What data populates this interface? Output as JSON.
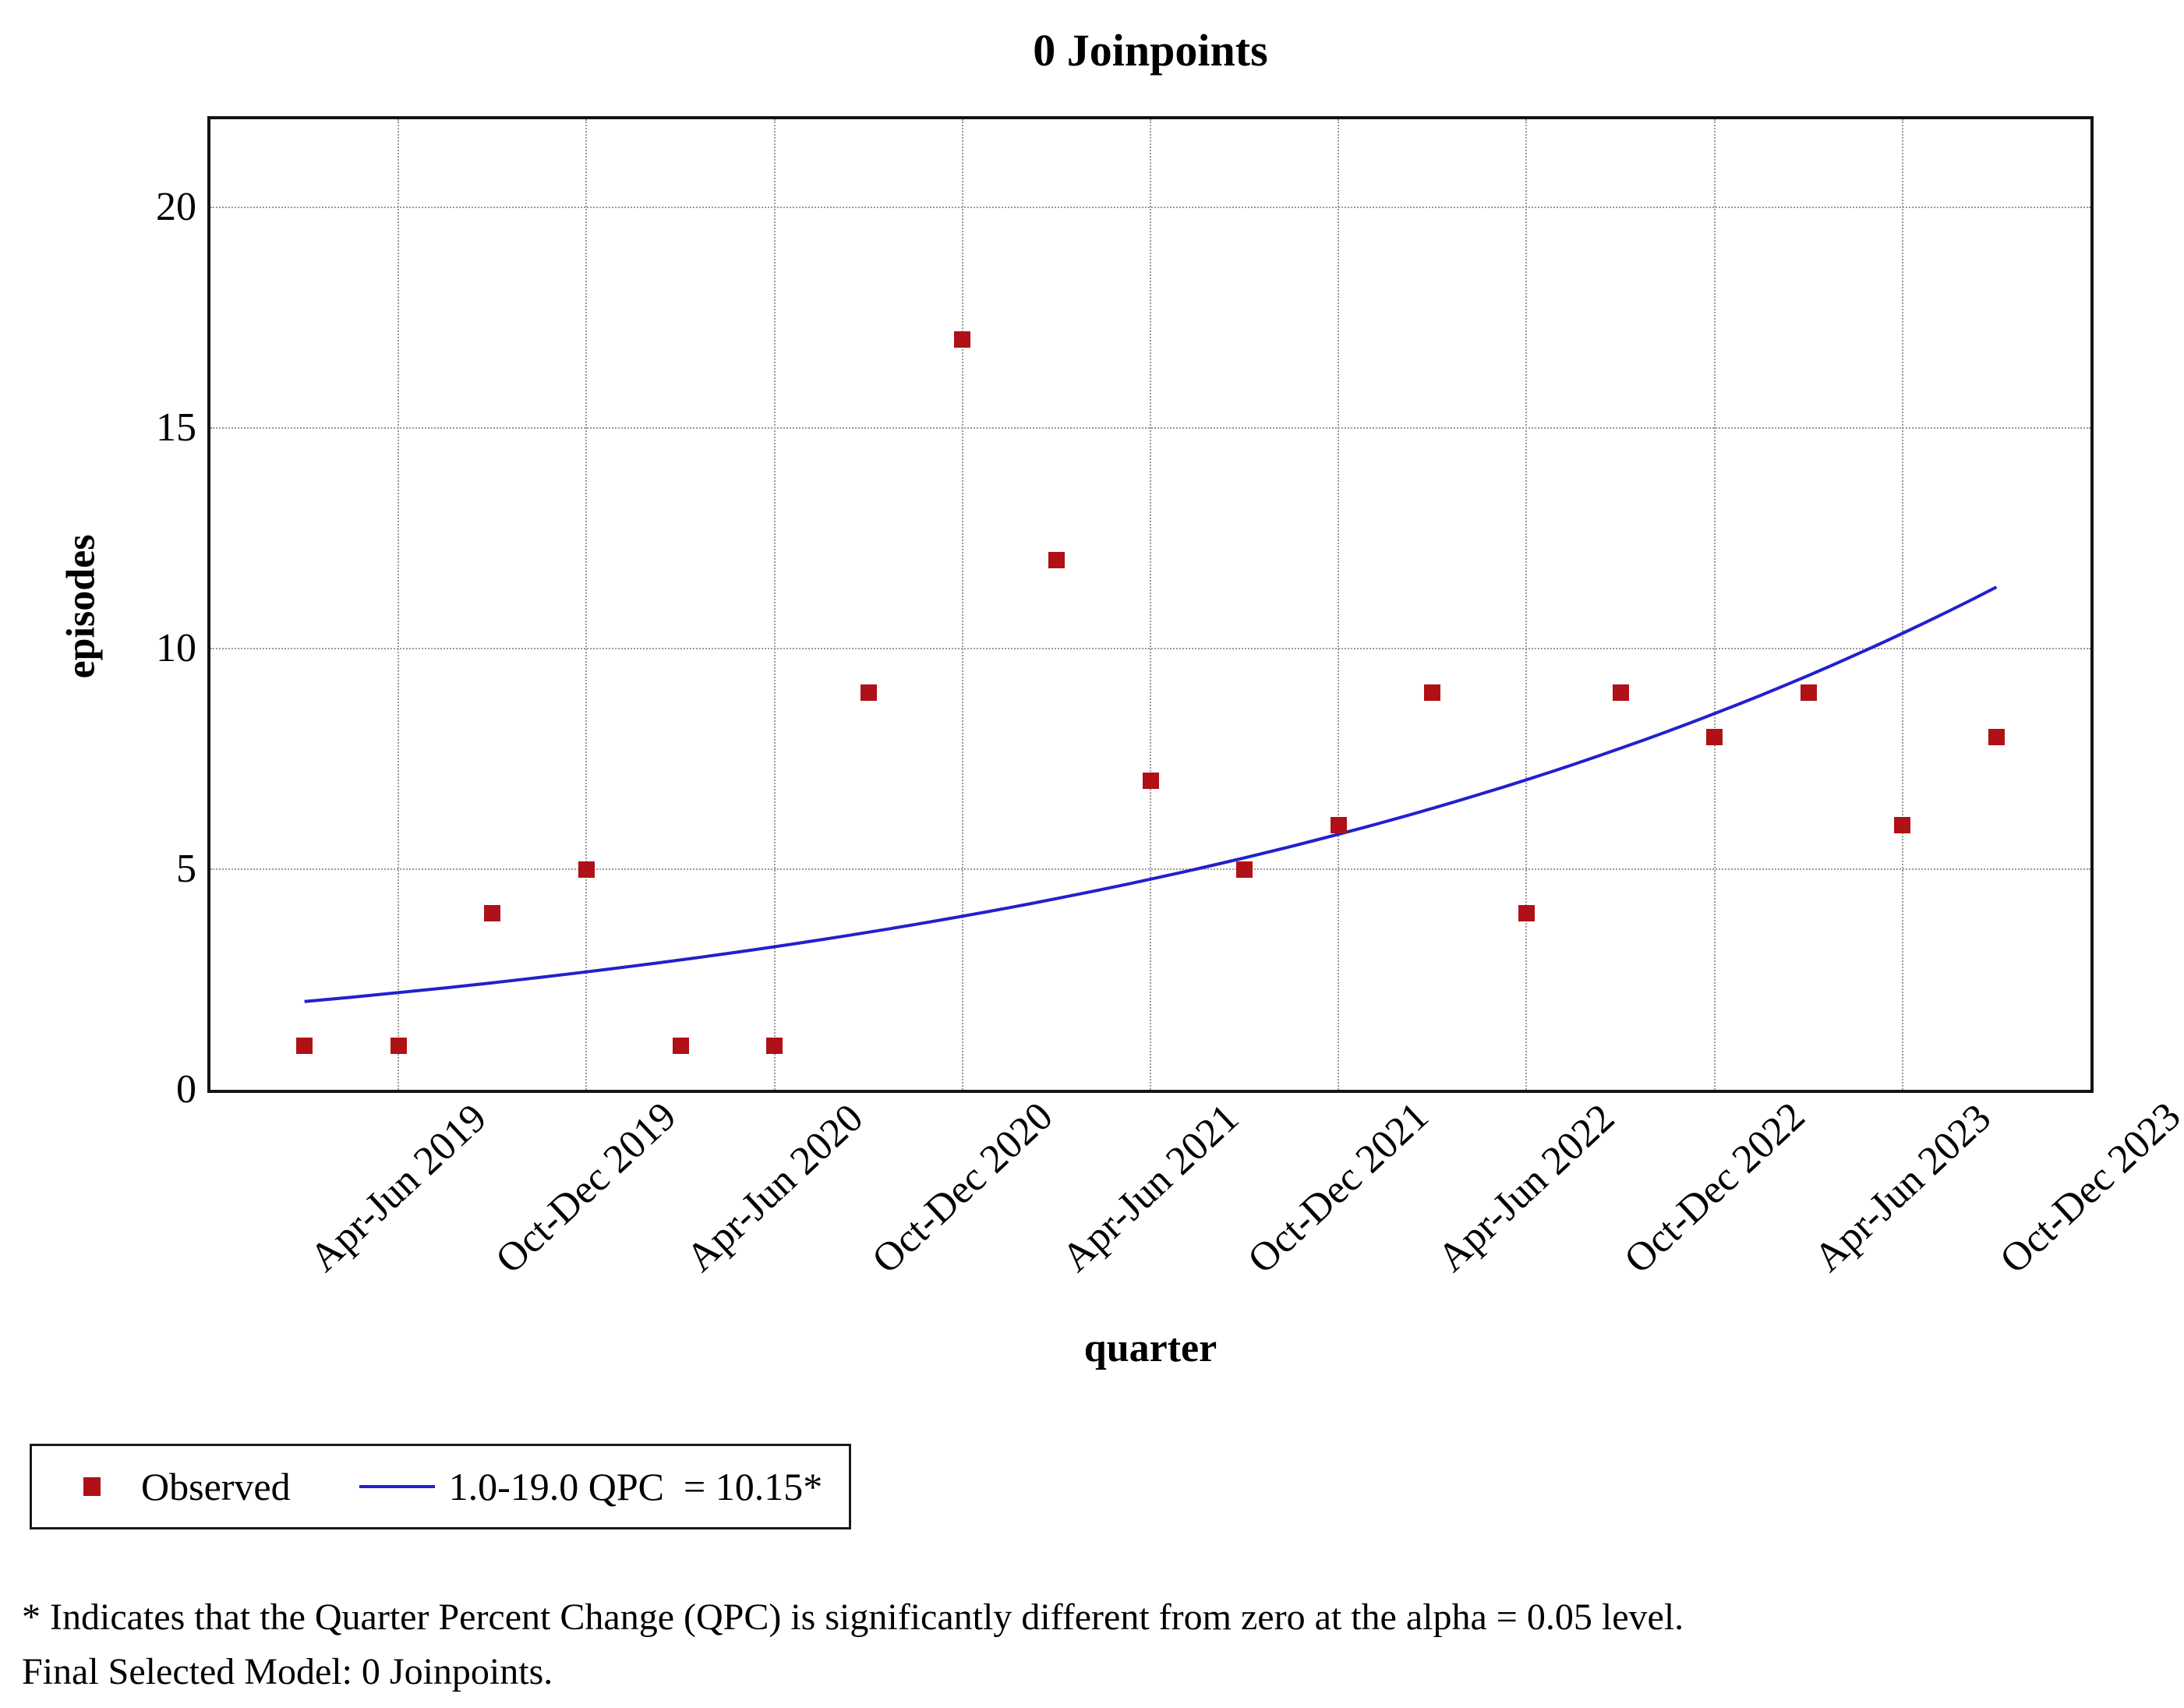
{
  "chart_data": {
    "type": "scatter",
    "title": "0 Joinpoints",
    "xlabel": "quarter",
    "ylabel": "episodes",
    "ylim": [
      0,
      22
    ],
    "x_range": [
      0,
      20
    ],
    "y_ticks": [
      0,
      5,
      10,
      15,
      20
    ],
    "y_gridlines": [
      5,
      10,
      15,
      20
    ],
    "x_gridlines": [
      2,
      4,
      6,
      8,
      10,
      12,
      14,
      16,
      18
    ],
    "x_tick_positions": [
      2,
      4,
      6,
      8,
      10,
      12,
      14,
      16,
      18,
      20
    ],
    "x_tick_labels": [
      "Apr-Jun 2019",
      "Oct-Dec 2019",
      "Apr-Jun 2020",
      "Oct-Dec 2020",
      "Apr-Jun 2021",
      "Oct-Dec 2021",
      "Apr-Jun 2022",
      "Oct-Dec 2022",
      "Apr-Jun 2023",
      "Oct-Dec 2023"
    ],
    "grid": true,
    "legend_position": "bottom-left-outside",
    "series": [
      {
        "name": "Observed",
        "type": "scatter",
        "marker": "square",
        "color": "#b01116",
        "x": [
          1,
          2,
          3,
          4,
          5,
          6,
          7,
          8,
          9,
          10,
          11,
          12,
          13,
          14,
          15,
          16,
          17,
          18,
          19
        ],
        "values": [
          1,
          1,
          4,
          5,
          1,
          1,
          9,
          17,
          12,
          7,
          5,
          6,
          9,
          4,
          9,
          8,
          9,
          6,
          8
        ]
      },
      {
        "name": "1.0-19.0 QPC  = 10.15*",
        "type": "line",
        "color": "#2121cc",
        "model": {
          "x_start": 1,
          "x_end": 19,
          "start_value": 2.0,
          "qpc_percent": 10.15
        }
      }
    ]
  },
  "footnotes": {
    "line1": "* Indicates that the Quarter Percent Change (QPC) is significantly different from zero at the alpha = 0.05 level.",
    "line2": "Final Selected Model: 0 Joinpoints."
  }
}
